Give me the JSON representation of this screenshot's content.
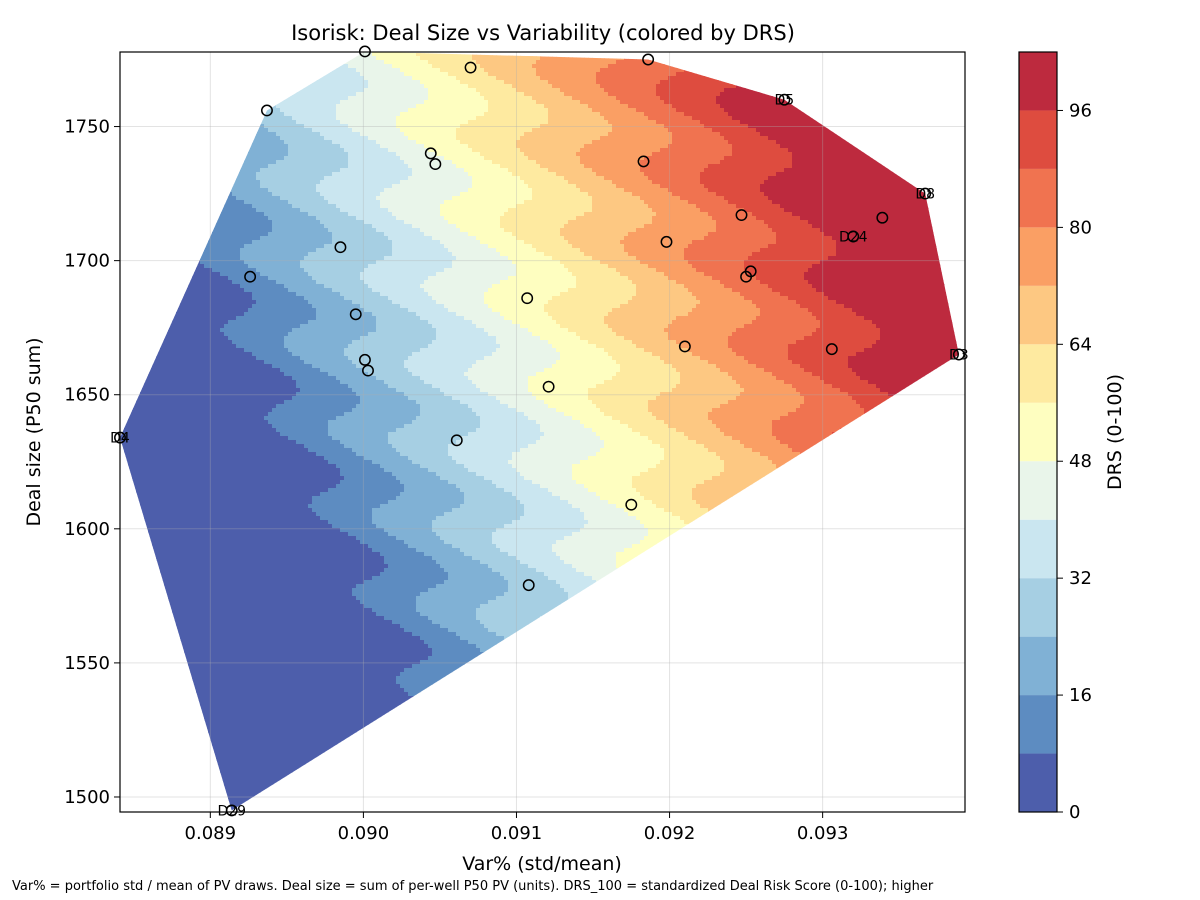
{
  "chart_data": {
    "type": "contour-scatter",
    "title": "Isorisk: Deal Size vs Variability (colored by DRS)",
    "xlabel": "Var% (std/mean)",
    "ylabel": "Deal size (P50 sum)",
    "xlim": [
      0.08841,
      0.09393
    ],
    "ylim": [
      1494.4,
      1777.8
    ],
    "x_ticks": [
      0.089,
      0.09,
      0.091,
      0.092,
      0.093
    ],
    "x_tick_labels": [
      "0.089",
      "0.090",
      "0.091",
      "0.092",
      "0.093"
    ],
    "y_ticks": [
      1500,
      1550,
      1600,
      1650,
      1700,
      1750
    ],
    "y_tick_labels": [
      "1500",
      "1550",
      "1600",
      "1650",
      "1700",
      "1750"
    ],
    "grid": true,
    "colorbar": {
      "label": "DRS (0-100)",
      "range": [
        0,
        104
      ],
      "levels": [
        0,
        8,
        16,
        24,
        32,
        40,
        48,
        56,
        64,
        72,
        80,
        88,
        96,
        104
      ],
      "ticks": [
        0,
        16,
        32,
        48,
        64,
        80,
        96
      ],
      "tick_labels": [
        "0",
        "16",
        "32",
        "48",
        "64",
        "80",
        "96"
      ],
      "colors": [
        "#4d5eab",
        "#5d8cc1",
        "#80b1d5",
        "#a6cfe3",
        "#cae6f0",
        "#e9f5ea",
        "#fefec0",
        "#feeaa0",
        "#fdc882",
        "#fa9f64",
        "#f07350",
        "#de4c3f",
        "#bd2a3e"
      ]
    },
    "series": [
      {
        "marker": "open-circle",
        "points": [
          {
            "x": 0.09001,
            "y": 1778,
            "label": ""
          },
          {
            "x": 0.0907,
            "y": 1772,
            "label": ""
          },
          {
            "x": 0.09186,
            "y": 1775,
            "label": ""
          },
          {
            "x": 0.08937,
            "y": 1756,
            "label": ""
          },
          {
            "x": 0.09275,
            "y": 1760,
            "label": "D5"
          },
          {
            "x": 0.09044,
            "y": 1740,
            "label": ""
          },
          {
            "x": 0.09047,
            "y": 1736,
            "label": ""
          },
          {
            "x": 0.09183,
            "y": 1737,
            "label": ""
          },
          {
            "x": 0.09367,
            "y": 1725,
            "label": "D8"
          },
          {
            "x": 0.09247,
            "y": 1717,
            "label": ""
          },
          {
            "x": 0.09339,
            "y": 1716,
            "label": ""
          },
          {
            "x": 0.0932,
            "y": 1709,
            "label": "D24"
          },
          {
            "x": 0.08985,
            "y": 1705,
            "label": ""
          },
          {
            "x": 0.09198,
            "y": 1707,
            "label": ""
          },
          {
            "x": 0.08926,
            "y": 1694,
            "label": ""
          },
          {
            "x": 0.09253,
            "y": 1696,
            "label": ""
          },
          {
            "x": 0.0925,
            "y": 1694,
            "label": ""
          },
          {
            "x": 0.09107,
            "y": 1686,
            "label": ""
          },
          {
            "x": 0.08995,
            "y": 1680,
            "label": ""
          },
          {
            "x": 0.0921,
            "y": 1668,
            "label": ""
          },
          {
            "x": 0.09306,
            "y": 1667,
            "label": ""
          },
          {
            "x": 0.09389,
            "y": 1665,
            "label": "D3"
          },
          {
            "x": 0.09001,
            "y": 1663,
            "label": ""
          },
          {
            "x": 0.09003,
            "y": 1659,
            "label": ""
          },
          {
            "x": 0.09121,
            "y": 1653,
            "label": ""
          },
          {
            "x": 0.08841,
            "y": 1634,
            "label": "D4"
          },
          {
            "x": 0.09061,
            "y": 1633,
            "label": ""
          },
          {
            "x": 0.09175,
            "y": 1609,
            "label": ""
          },
          {
            "x": 0.09108,
            "y": 1579,
            "label": ""
          },
          {
            "x": 0.08914,
            "y": 1495,
            "label": "D29"
          }
        ]
      }
    ],
    "footnote": "Var% = portfolio std / mean of PV draws. Deal size = sum of per-well P50 PV (units). DRS_100 = standardized Deal Risk Score (0-100); higher"
  }
}
